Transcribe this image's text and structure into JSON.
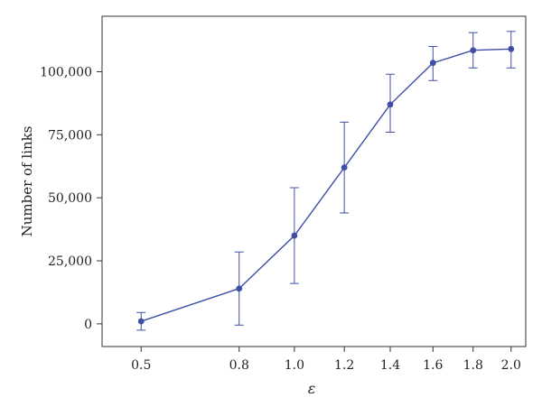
{
  "chart_data": {
    "type": "line",
    "title": "",
    "xlabel": "ε",
    "ylabel": "Number of links",
    "x": [
      0.5,
      0.8,
      1.0,
      1.2,
      1.4,
      1.6,
      1.8,
      2.0
    ],
    "x_tick_labels": [
      "0.5",
      "0.8",
      "1.0",
      "1.2",
      "1.4",
      "1.6",
      "1.8",
      "2.0"
    ],
    "y_ticks": [
      0,
      25000,
      50000,
      75000,
      100000
    ],
    "y_tick_labels": [
      "0",
      "25,000",
      "50,000",
      "75,000",
      "100,000"
    ],
    "xlim": [
      0.4,
      2.08
    ],
    "ylim": [
      -9000,
      122000
    ],
    "x_axis_scale": "square-root",
    "series": [
      {
        "values": [
          1000,
          14000,
          35000,
          62000,
          87000,
          103500,
          108500,
          109000
        ],
        "error_low": [
          -2500,
          -500,
          16000,
          44000,
          76000,
          96500,
          101500,
          101500
        ],
        "error_high": [
          4500,
          28500,
          54000,
          80000,
          99000,
          110000,
          115500,
          116000
        ],
        "color": "#3f4fa6"
      }
    ],
    "grid": false,
    "legend": "none"
  }
}
